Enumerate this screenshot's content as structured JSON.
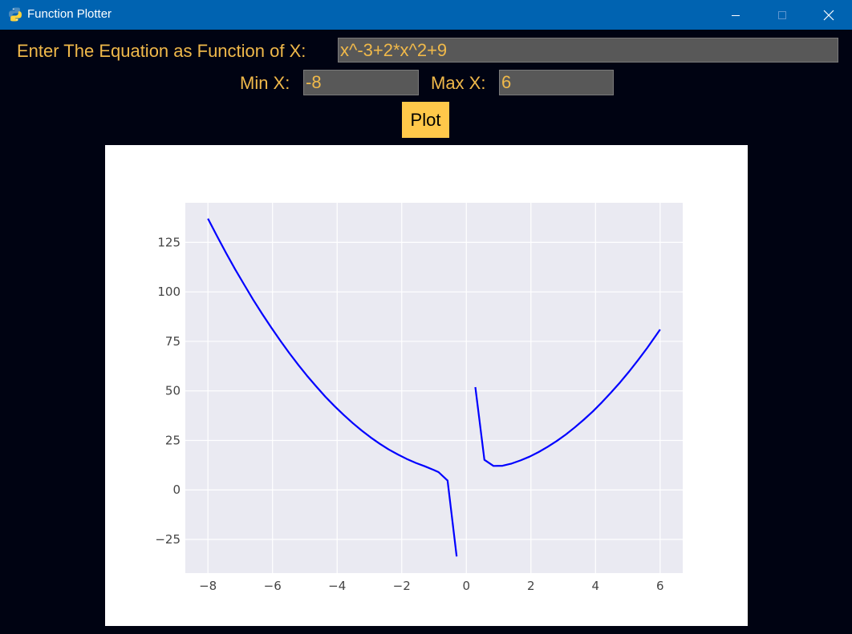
{
  "window": {
    "title": "Function Plotter",
    "icon": "python-icon",
    "titlebar_color": "#0063b1",
    "controls": {
      "minimize": "minimize-icon",
      "maximize": "maximize-icon",
      "close": "close-icon"
    }
  },
  "form": {
    "equation_label": "Enter The Equation as Function of X:",
    "equation_value": "x^-3+2*x^2+9",
    "min_x_label": "Min X:",
    "min_x_value": "-8",
    "max_x_label": "Max X:",
    "max_x_value": "6",
    "plot_button_label": "Plot"
  },
  "colors": {
    "background": "#000312",
    "label_text": "#f0b94a",
    "input_background": "#585858",
    "button_background": "#ffc84a",
    "line": "#0000ff",
    "axes_background": "#eaeaf2",
    "grid": "#ffffff"
  },
  "chart_data": {
    "type": "line",
    "title": "",
    "xlabel": "",
    "ylabel": "",
    "xlim": [
      -8.7,
      6.7
    ],
    "ylim": [
      -42,
      145
    ],
    "grid": true,
    "xticks": [
      -8,
      -6,
      -4,
      -2,
      0,
      2,
      4,
      6
    ],
    "xtick_labels": [
      "−8",
      "−6",
      "−4",
      "−2",
      "0",
      "2",
      "4",
      "6"
    ],
    "yticks": [
      -25,
      0,
      25,
      50,
      75,
      100,
      125
    ],
    "ytick_labels": [
      "−25",
      "0",
      "25",
      "50",
      "75",
      "100",
      "125"
    ],
    "series": [
      {
        "color": "#0000ff",
        "segments": [
          {
            "x": [
              -8.0,
              -7.72,
              -7.44,
              -7.16,
              -6.88,
              -6.6,
              -6.32,
              -6.04,
              -5.76,
              -5.48,
              -5.2,
              -4.92,
              -4.64,
              -4.36,
              -4.08,
              -3.8,
              -3.52,
              -3.24,
              -2.96,
              -2.68,
              -2.4,
              -2.12,
              -1.84,
              -1.56,
              -1.28,
              -1.0,
              -0.86,
              -0.58,
              -0.3
            ],
            "y": [
              137.0,
              128.2,
              119.7,
              111.5,
              103.7,
              96.1,
              88.9,
              82.0,
              75.4,
              69.1,
              63.1,
              57.4,
              52.1,
              47.0,
              42.3,
              37.9,
              33.8,
              30.0,
              26.5,
              23.3,
              20.4,
              17.9,
              15.6,
              13.6,
              11.9,
              10.0,
              9.0,
              4.7,
              -33.6
            ]
          },
          {
            "x": [
              0.28,
              0.56,
              0.84,
              1.12,
              1.4,
              1.68,
              1.96,
              2.24,
              2.52,
              2.8,
              3.08,
              3.36,
              3.64,
              3.92,
              4.2,
              4.48,
              4.76,
              5.04,
              5.32,
              5.6,
              5.88,
              6.0
            ],
            "y": [
              51.9,
              15.2,
              12.1,
              12.2,
              13.3,
              14.9,
              16.8,
              19.1,
              21.8,
              24.7,
              28.0,
              31.6,
              35.5,
              39.7,
              44.3,
              49.2,
              54.3,
              59.8,
              65.6,
              71.7,
              78.2,
              81.0
            ]
          }
        ]
      }
    ]
  }
}
